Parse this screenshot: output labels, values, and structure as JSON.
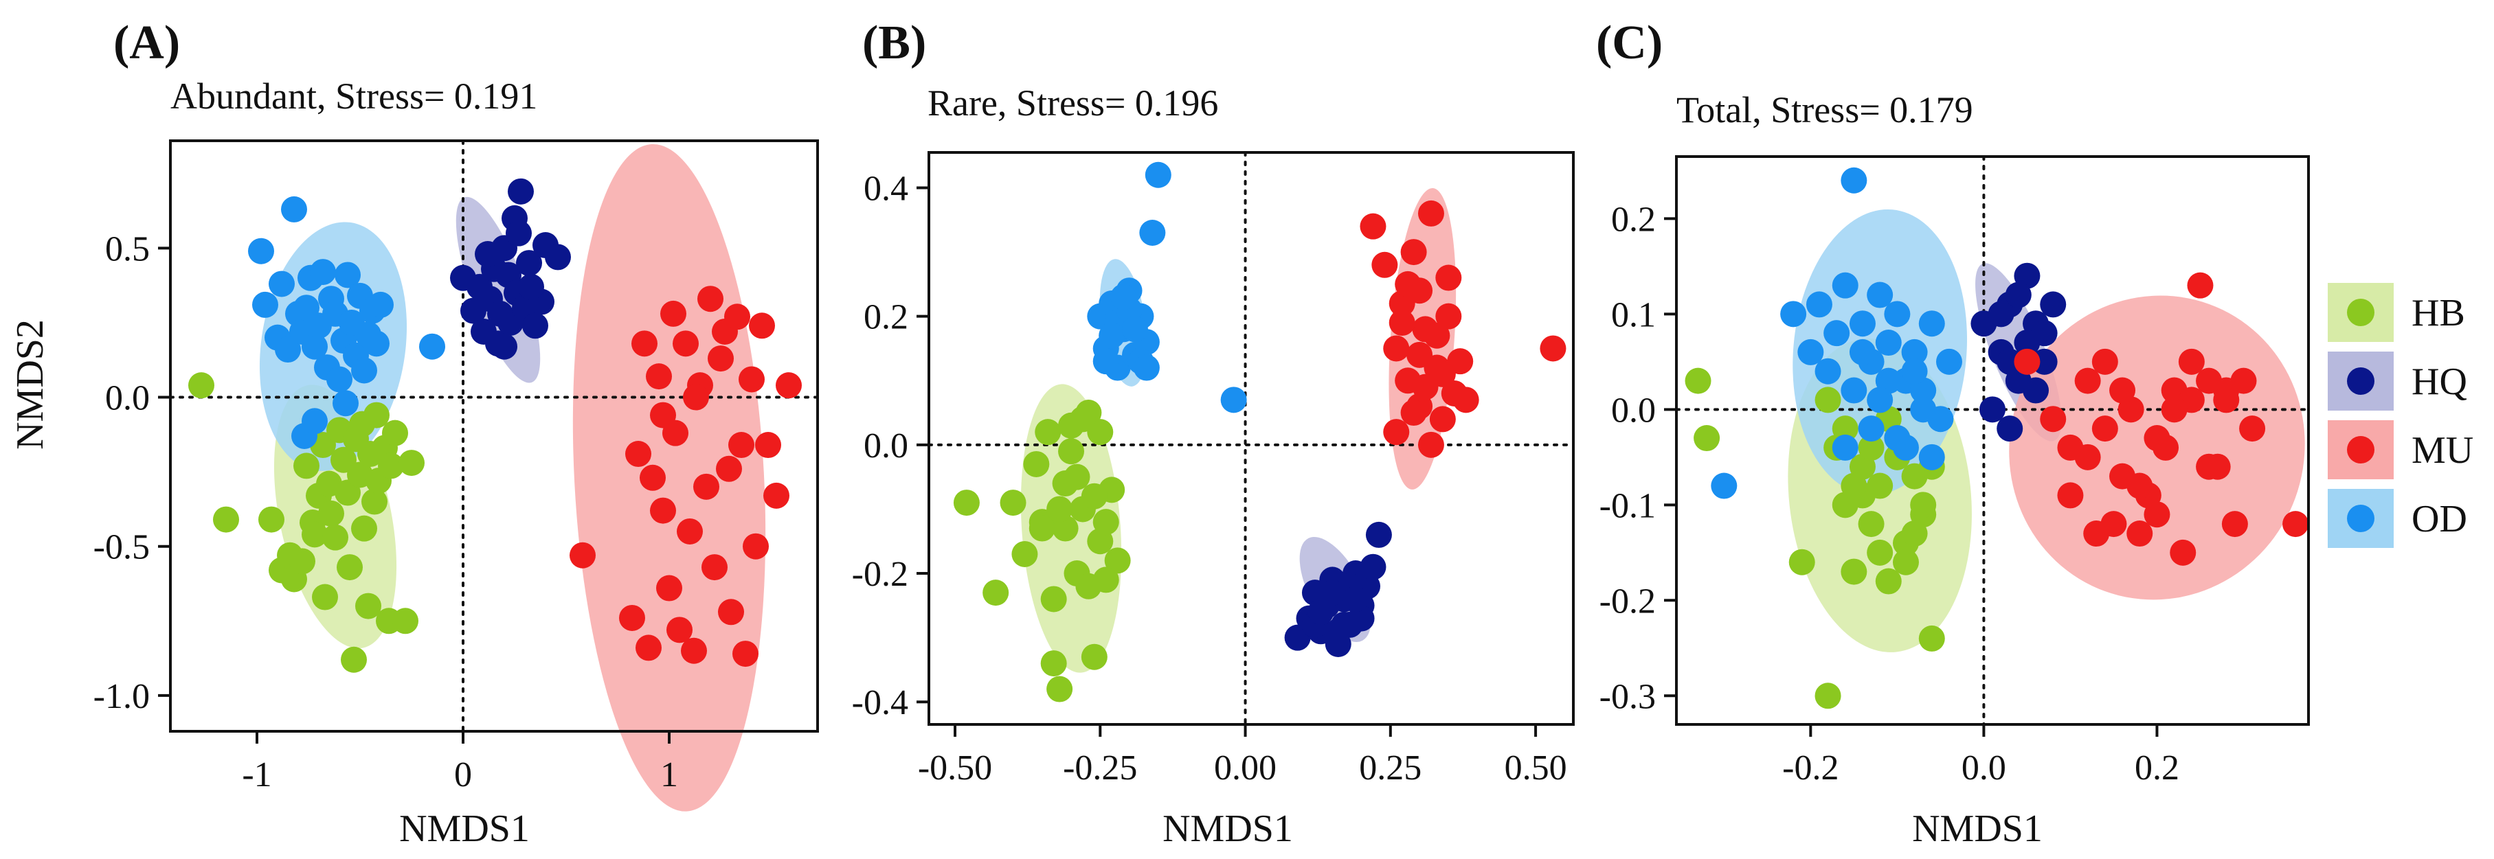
{
  "colors": {
    "HB": "#8bc820",
    "HQ": "#0a168c",
    "MU": "#ee1c1c",
    "OD": "#1a8ff0"
  },
  "ellipse_colors": {
    "HB": "#d7eba7",
    "HQ": "#b7b9dd",
    "MU": "#f8a9a9",
    "OD": "#9fd4f4"
  },
  "legend": [
    "HB",
    "HQ",
    "MU",
    "OD"
  ],
  "chart_data": [
    {
      "type": "scatter",
      "panel_label": "(A)",
      "title": "Abundant,  Stress= 0.191",
      "xlabel": "NMDS1",
      "ylabel": "NMDS2",
      "xlim": [
        -1.42,
        1.72
      ],
      "ylim": [
        -1.12,
        0.86
      ],
      "xticks": [
        -1,
        0,
        1
      ],
      "xtick_labels": [
        "-1",
        "0",
        "1"
      ],
      "yticks": [
        0.5,
        0.0,
        -0.5,
        -1.0
      ],
      "ytick_labels": [
        "0.5",
        "0.0",
        "-0.5",
        "-1.0"
      ],
      "ellipses": [
        {
          "group": "HB",
          "cx": -0.62,
          "cy": -0.4,
          "rx": 0.27,
          "ry": 0.45,
          "angle": 12
        },
        {
          "group": "HQ",
          "cx": 0.17,
          "cy": 0.36,
          "rx": 0.13,
          "ry": 0.33,
          "angle": 20
        },
        {
          "group": "MU",
          "cx": 1.0,
          "cy": -0.27,
          "rx": 0.46,
          "ry": 1.12,
          "angle": 3
        },
        {
          "group": "OD",
          "cx": -0.63,
          "cy": 0.17,
          "rx": 0.35,
          "ry": 0.42,
          "angle": -8
        }
      ],
      "series": [
        {
          "name": "HB",
          "x": [
            -1.27,
            -1.15,
            -0.93,
            -0.88,
            -0.84,
            -0.82,
            -0.78,
            -0.76,
            -0.73,
            -0.72,
            -0.7,
            -0.68,
            -0.67,
            -0.65,
            -0.64,
            -0.62,
            -0.6,
            -0.58,
            -0.56,
            -0.55,
            -0.53,
            -0.52,
            -0.5,
            -0.49,
            -0.48,
            -0.46,
            -0.45,
            -0.43,
            -0.42,
            -0.41,
            -0.38,
            -0.36,
            -0.35,
            -0.33,
            -0.28,
            -0.25
          ],
          "y": [
            0.04,
            -0.41,
            -0.41,
            -0.58,
            -0.53,
            -0.61,
            -0.55,
            -0.23,
            -0.42,
            -0.46,
            -0.33,
            -0.16,
            -0.67,
            -0.29,
            -0.39,
            -0.47,
            -0.11,
            -0.21,
            -0.32,
            -0.57,
            -0.88,
            -0.14,
            -0.26,
            -0.09,
            -0.44,
            -0.7,
            -0.19,
            -0.35,
            -0.06,
            -0.28,
            -0.17,
            -0.75,
            -0.23,
            -0.12,
            -0.75,
            -0.22
          ]
        },
        {
          "name": "HQ",
          "x": [
            0.0,
            0.05,
            0.08,
            0.1,
            0.13,
            0.15,
            0.17,
            0.18,
            0.2,
            0.22,
            0.23,
            0.25,
            0.26,
            0.28,
            0.3,
            0.32,
            0.35,
            0.38,
            0.4,
            0.46,
            0.12,
            0.2,
            0.27,
            0.33
          ],
          "y": [
            0.4,
            0.29,
            0.37,
            0.22,
            0.33,
            0.43,
            0.18,
            0.28,
            0.5,
            0.41,
            0.25,
            0.6,
            0.35,
            0.69,
            0.3,
            0.45,
            0.24,
            0.32,
            0.51,
            0.47,
            0.48,
            0.17,
            0.55,
            0.37
          ]
        },
        {
          "name": "MU",
          "x": [
            0.58,
            0.82,
            0.85,
            0.88,
            0.9,
            0.92,
            0.95,
            0.97,
            1.0,
            1.02,
            1.03,
            1.05,
            1.08,
            1.1,
            1.12,
            1.15,
            1.18,
            1.2,
            1.22,
            1.25,
            1.27,
            1.3,
            1.33,
            1.35,
            1.37,
            1.4,
            1.42,
            1.45,
            1.48,
            1.52,
            1.58,
            0.97,
            1.13,
            1.29
          ],
          "y": [
            -0.53,
            -0.74,
            -0.19,
            0.18,
            -0.84,
            -0.27,
            0.07,
            -0.38,
            -0.64,
            0.28,
            -0.12,
            -0.78,
            0.18,
            -0.45,
            -0.85,
            0.04,
            -0.3,
            0.33,
            -0.57,
            0.13,
            0.22,
            -0.72,
            0.27,
            -0.16,
            -0.86,
            0.06,
            -0.5,
            0.24,
            -0.16,
            -0.33,
            0.04,
            -0.06,
            0.0,
            -0.24
          ]
        },
        {
          "name": "OD",
          "x": [
            -0.98,
            -0.96,
            -0.9,
            -0.88,
            -0.85,
            -0.82,
            -0.8,
            -0.78,
            -0.76,
            -0.74,
            -0.72,
            -0.7,
            -0.68,
            -0.66,
            -0.64,
            -0.62,
            -0.6,
            -0.58,
            -0.56,
            -0.54,
            -0.52,
            -0.5,
            -0.48,
            -0.46,
            -0.44,
            -0.42,
            -0.4,
            -0.15,
            -0.77,
            -0.57,
            -0.72
          ],
          "y": [
            0.49,
            0.31,
            0.2,
            0.38,
            0.16,
            0.63,
            0.28,
            0.22,
            0.3,
            0.4,
            0.17,
            0.24,
            0.42,
            0.1,
            0.33,
            0.28,
            0.06,
            0.19,
            0.41,
            0.25,
            0.14,
            0.34,
            0.09,
            0.21,
            0.29,
            0.18,
            0.31,
            0.17,
            -0.13,
            -0.02,
            -0.08
          ]
        }
      ]
    },
    {
      "type": "scatter",
      "panel_label": "(B)",
      "title": "Rare,  Stress= 0.196",
      "xlabel": "NMDS1",
      "ylabel": "",
      "xlim": [
        -0.545,
        0.565
      ],
      "ylim": [
        -0.435,
        0.455
      ],
      "xticks": [
        -0.5,
        -0.25,
        0.0,
        0.25,
        0.5
      ],
      "xtick_labels": [
        "-0.50",
        "-0.25",
        "0.00",
        "0.25",
        "0.50"
      ],
      "yticks": [
        0.4,
        0.2,
        0.0,
        -0.2,
        -0.4
      ],
      "ytick_labels": [
        "0.4",
        "0.2",
        "0.0",
        "-0.2",
        "-0.4"
      ],
      "ellipses": [
        {
          "group": "HB",
          "cx": -0.3,
          "cy": -0.13,
          "rx": 0.085,
          "ry": 0.225,
          "angle": 4
        },
        {
          "group": "HQ",
          "cx": 0.155,
          "cy": -0.225,
          "rx": 0.045,
          "ry": 0.09,
          "angle": 28
        },
        {
          "group": "MU",
          "cx": 0.305,
          "cy": 0.165,
          "rx": 0.055,
          "ry": 0.235,
          "angle": -4
        },
        {
          "group": "OD",
          "cx": -0.21,
          "cy": 0.19,
          "rx": 0.038,
          "ry": 0.1,
          "angle": 8
        }
      ],
      "series": [
        {
          "name": "HB",
          "x": [
            -0.48,
            -0.43,
            -0.4,
            -0.38,
            -0.36,
            -0.35,
            -0.34,
            -0.33,
            -0.32,
            -0.31,
            -0.3,
            -0.29,
            -0.28,
            -0.27,
            -0.26,
            -0.25,
            -0.24,
            -0.23,
            -0.22,
            -0.31,
            -0.29,
            -0.27,
            -0.25,
            -0.33,
            -0.35,
            -0.3,
            -0.28,
            -0.26,
            -0.24,
            -0.32
          ],
          "y": [
            -0.09,
            -0.23,
            -0.09,
            -0.17,
            -0.03,
            -0.12,
            0.02,
            -0.34,
            -0.38,
            -0.06,
            0.03,
            -0.2,
            -0.1,
            0.05,
            -0.33,
            -0.15,
            -0.12,
            -0.07,
            -0.18,
            -0.13,
            -0.05,
            -0.22,
            0.02,
            -0.24,
            -0.13,
            -0.01,
            0.04,
            -0.08,
            -0.21,
            -0.1
          ]
        },
        {
          "name": "HQ",
          "x": [
            0.09,
            0.11,
            0.12,
            0.13,
            0.14,
            0.15,
            0.16,
            0.17,
            0.18,
            0.19,
            0.2,
            0.21,
            0.22,
            0.23,
            0.12,
            0.14,
            0.16,
            0.18,
            0.2,
            0.13,
            0.15,
            0.17,
            0.19
          ],
          "y": [
            -0.3,
            -0.27,
            -0.23,
            -0.29,
            -0.25,
            -0.21,
            -0.31,
            -0.24,
            -0.28,
            -0.2,
            -0.25,
            -0.22,
            -0.19,
            -0.14,
            -0.28,
            -0.24,
            -0.29,
            -0.22,
            -0.27,
            -0.26,
            -0.23,
            -0.28,
            -0.24
          ]
        },
        {
          "name": "MU",
          "x": [
            0.22,
            0.24,
            0.26,
            0.27,
            0.28,
            0.29,
            0.3,
            0.31,
            0.32,
            0.33,
            0.34,
            0.35,
            0.36,
            0.37,
            0.38,
            0.26,
            0.28,
            0.3,
            0.32,
            0.29,
            0.31,
            0.33,
            0.27,
            0.35,
            0.3,
            0.34,
            0.53
          ],
          "y": [
            0.34,
            0.28,
            0.02,
            0.22,
            0.1,
            0.3,
            0.06,
            0.18,
            0.36,
            0.12,
            0.04,
            0.2,
            0.08,
            0.13,
            0.07,
            0.15,
            0.25,
            0.24,
            0.0,
            0.05,
            0.09,
            0.17,
            0.19,
            0.26,
            0.14,
            0.11,
            0.15
          ]
        },
        {
          "name": "OD",
          "x": [
            -0.25,
            -0.24,
            -0.23,
            -0.22,
            -0.21,
            -0.2,
            -0.19,
            -0.18,
            -0.17,
            -0.22,
            -0.2,
            -0.18,
            -0.23,
            -0.21,
            -0.19,
            -0.24,
            -0.17,
            -0.16,
            -0.15,
            -0.02
          ],
          "y": [
            0.2,
            0.15,
            0.22,
            0.12,
            0.18,
            0.24,
            0.14,
            0.2,
            0.16,
            0.19,
            0.21,
            0.13,
            0.17,
            0.23,
            0.18,
            0.13,
            0.12,
            0.33,
            0.42,
            0.07
          ]
        }
      ]
    },
    {
      "type": "scatter",
      "panel_label": "(C)",
      "title": "Total,  Stress= 0.179",
      "xlabel": "NMDS1",
      "ylabel": "",
      "xlim": [
        -0.355,
        0.375
      ],
      "ylim": [
        -0.33,
        0.265
      ],
      "xticks": [
        -0.2,
        0.0,
        0.2
      ],
      "xtick_labels": [
        "-0.2",
        "0.0",
        "0.2"
      ],
      "yticks": [
        0.2,
        0.1,
        0.0,
        -0.1,
        -0.2,
        -0.3
      ],
      "ytick_labels": [
        "0.2",
        "0.1",
        "0.0",
        "-0.1",
        "-0.2",
        "-0.3"
      ],
      "ellipses": [
        {
          "group": "HB",
          "cx": -0.12,
          "cy": -0.09,
          "rx": 0.105,
          "ry": 0.165,
          "angle": 6
        },
        {
          "group": "HQ",
          "cx": 0.04,
          "cy": 0.06,
          "rx": 0.03,
          "ry": 0.1,
          "angle": 22
        },
        {
          "group": "MU",
          "cx": 0.2,
          "cy": -0.04,
          "rx": 0.17,
          "ry": 0.16,
          "angle": -20
        },
        {
          "group": "OD",
          "cx": -0.12,
          "cy": 0.06,
          "rx": 0.1,
          "ry": 0.15,
          "angle": -5
        }
      ],
      "series": [
        {
          "name": "HB",
          "x": [
            -0.33,
            -0.32,
            -0.21,
            -0.18,
            -0.17,
            -0.16,
            -0.15,
            -0.14,
            -0.13,
            -0.12,
            -0.11,
            -0.1,
            -0.09,
            -0.08,
            -0.07,
            -0.06,
            -0.16,
            -0.14,
            -0.12,
            -0.1,
            -0.08,
            -0.15,
            -0.11,
            -0.09,
            -0.07,
            -0.13,
            -0.18,
            -0.06
          ],
          "y": [
            0.03,
            -0.03,
            -0.16,
            -0.3,
            -0.04,
            -0.1,
            -0.17,
            -0.06,
            -0.12,
            -0.08,
            -0.18,
            -0.03,
            -0.14,
            -0.07,
            -0.11,
            -0.24,
            -0.02,
            -0.09,
            -0.15,
            -0.05,
            -0.13,
            -0.08,
            -0.01,
            -0.16,
            -0.1,
            -0.04,
            0.01,
            -0.06
          ]
        },
        {
          "name": "HQ",
          "x": [
            0.0,
            0.02,
            0.03,
            0.04,
            0.05,
            0.06,
            0.07,
            0.08,
            0.01,
            0.03,
            0.05,
            0.04,
            0.06,
            0.02,
            0.07,
            0.03
          ],
          "y": [
            0.09,
            0.06,
            0.11,
            0.03,
            0.14,
            0.09,
            0.05,
            0.11,
            0.0,
            -0.02,
            0.07,
            0.12,
            0.02,
            0.1,
            0.08,
            0.05
          ]
        },
        {
          "name": "MU",
          "x": [
            0.05,
            0.08,
            0.1,
            0.12,
            0.13,
            0.14,
            0.15,
            0.16,
            0.17,
            0.18,
            0.19,
            0.2,
            0.21,
            0.22,
            0.23,
            0.24,
            0.25,
            0.26,
            0.27,
            0.28,
            0.29,
            0.3,
            0.31,
            0.36,
            0.12,
            0.16,
            0.2,
            0.24,
            0.14,
            0.18,
            0.22,
            0.26,
            0.1,
            0.28
          ],
          "y": [
            0.05,
            -0.01,
            -0.09,
            0.03,
            -0.13,
            0.05,
            -0.12,
            -0.07,
            0.0,
            -0.13,
            -0.09,
            -0.03,
            -0.04,
            0.02,
            -0.15,
            0.05,
            0.13,
            0.03,
            -0.06,
            0.02,
            -0.12,
            0.03,
            -0.02,
            -0.12,
            -0.05,
            0.02,
            -0.11,
            0.01,
            -0.02,
            -0.08,
            0.0,
            -0.06,
            -0.04,
            0.01
          ]
        },
        {
          "name": "OD",
          "x": [
            -0.3,
            -0.22,
            -0.2,
            -0.19,
            -0.18,
            -0.17,
            -0.16,
            -0.15,
            -0.14,
            -0.13,
            -0.12,
            -0.11,
            -0.1,
            -0.09,
            -0.08,
            -0.07,
            -0.06,
            -0.05,
            -0.13,
            -0.11,
            -0.09,
            -0.07,
            -0.12,
            -0.1,
            -0.08,
            -0.14,
            -0.15,
            -0.16,
            -0.04,
            -0.06
          ],
          "y": [
            -0.08,
            0.1,
            0.06,
            0.11,
            0.04,
            0.08,
            0.13,
            0.24,
            0.09,
            0.05,
            0.12,
            0.07,
            0.1,
            0.03,
            0.06,
            0.02,
            0.09,
            -0.01,
            -0.02,
            0.03,
            -0.04,
            0.0,
            0.01,
            -0.03,
            0.04,
            0.06,
            0.02,
            -0.04,
            0.05,
            -0.05
          ]
        }
      ]
    }
  ]
}
